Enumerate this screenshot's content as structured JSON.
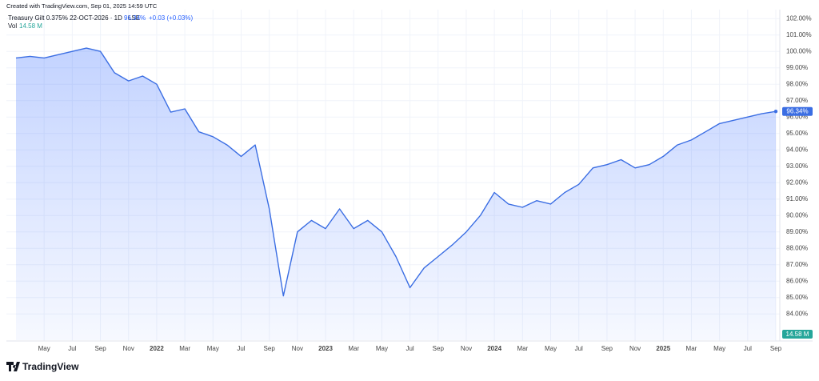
{
  "header": {
    "credit": "Created with TradingView.com, Sep 01, 2025 14:59 UTC",
    "symbol": "Treasury Gilt 0.375% 22-OCT-2026 · 1D · LSE",
    "price": "96.34%",
    "change": "+0.03 (+0.03%)",
    "vol_label": "Vol",
    "vol_value": "14.58 M"
  },
  "logo": "TradingView",
  "chart_data": {
    "type": "area",
    "x": [
      "2021-03",
      "2021-04",
      "2021-05",
      "2021-06",
      "2021-07",
      "2021-08",
      "2021-09",
      "2021-10",
      "2021-11",
      "2021-12",
      "2022-01",
      "2022-02",
      "2022-03",
      "2022-04",
      "2022-05",
      "2022-06",
      "2022-07",
      "2022-08",
      "2022-09",
      "2022-10",
      "2022-11",
      "2022-12",
      "2023-01",
      "2023-02",
      "2023-03",
      "2023-04",
      "2023-05",
      "2023-06",
      "2023-07",
      "2023-08",
      "2023-09",
      "2023-10",
      "2023-11",
      "2023-12",
      "2024-01",
      "2024-02",
      "2024-03",
      "2024-04",
      "2024-05",
      "2024-06",
      "2024-07",
      "2024-08",
      "2024-09",
      "2024-10",
      "2024-11",
      "2024-12",
      "2025-01",
      "2025-02",
      "2025-03",
      "2025-04",
      "2025-05",
      "2025-06",
      "2025-07",
      "2025-08",
      "2025-09"
    ],
    "series": [
      {
        "name": "Treasury Gilt 0.375% 22-OCT-2026",
        "color": "#3b6ee3",
        "values": [
          99.6,
          99.7,
          99.6,
          99.8,
          100.0,
          100.2,
          100.0,
          98.7,
          98.2,
          98.5,
          98.0,
          96.3,
          96.5,
          95.1,
          94.8,
          94.3,
          93.6,
          94.3,
          90.4,
          85.1,
          89.0,
          89.7,
          89.2,
          90.4,
          89.2,
          89.7,
          89.0,
          87.5,
          85.6,
          86.8,
          87.5,
          88.2,
          89.0,
          90.0,
          91.4,
          90.7,
          90.5,
          90.9,
          90.7,
          91.4,
          91.9,
          92.9,
          93.1,
          93.4,
          92.9,
          93.1,
          93.6,
          94.3,
          94.6,
          95.1,
          95.6,
          95.8,
          96.0,
          96.2,
          96.34
        ]
      }
    ],
    "last_price_label": "96.34%",
    "xlim": [
      "2021-03",
      "2025-09"
    ],
    "xticks": [
      {
        "value": "2021-05",
        "label": "May"
      },
      {
        "value": "2021-07",
        "label": "Jul"
      },
      {
        "value": "2021-09",
        "label": "Sep"
      },
      {
        "value": "2021-11",
        "label": "Nov"
      },
      {
        "value": "2022-01",
        "label": "2022"
      },
      {
        "value": "2022-03",
        "label": "Mar"
      },
      {
        "value": "2022-05",
        "label": "May"
      },
      {
        "value": "2022-07",
        "label": "Jul"
      },
      {
        "value": "2022-09",
        "label": "Sep"
      },
      {
        "value": "2022-11",
        "label": "Nov"
      },
      {
        "value": "2023-01",
        "label": "2023"
      },
      {
        "value": "2023-03",
        "label": "Mar"
      },
      {
        "value": "2023-05",
        "label": "May"
      },
      {
        "value": "2023-07",
        "label": "Jul"
      },
      {
        "value": "2023-09",
        "label": "Sep"
      },
      {
        "value": "2023-11",
        "label": "Nov"
      },
      {
        "value": "2024-01",
        "label": "2024"
      },
      {
        "value": "2024-03",
        "label": "Mar"
      },
      {
        "value": "2024-05",
        "label": "May"
      },
      {
        "value": "2024-07",
        "label": "Jul"
      },
      {
        "value": "2024-09",
        "label": "Sep"
      },
      {
        "value": "2024-11",
        "label": "Nov"
      },
      {
        "value": "2025-01",
        "label": "2025"
      },
      {
        "value": "2025-03",
        "label": "Mar"
      },
      {
        "value": "2025-05",
        "label": "May"
      },
      {
        "value": "2025-07",
        "label": "Jul"
      },
      {
        "value": "2025-09",
        "label": "Sep"
      }
    ],
    "ylim": [
      82.4,
      102.4
    ],
    "yticks": [
      {
        "value": 84,
        "label": "84.00%"
      },
      {
        "value": 85,
        "label": "85.00%"
      },
      {
        "value": 86,
        "label": "86.00%"
      },
      {
        "value": 87,
        "label": "87.00%"
      },
      {
        "value": 88,
        "label": "88.00%"
      },
      {
        "value": 89,
        "label": "89.00%"
      },
      {
        "value": 90,
        "label": "90.00%"
      },
      {
        "value": 91,
        "label": "91.00%"
      },
      {
        "value": 92,
        "label": "92.00%"
      },
      {
        "value": 93,
        "label": "93.00%"
      },
      {
        "value": 94,
        "label": "94.00%"
      },
      {
        "value": 95,
        "label": "95.00%"
      },
      {
        "value": 96,
        "label": "96.00%"
      },
      {
        "value": 97,
        "label": "97.00%"
      },
      {
        "value": 98,
        "label": "98.00%"
      },
      {
        "value": 99,
        "label": "99.00%"
      },
      {
        "value": 100,
        "label": "100.00%"
      },
      {
        "value": 101,
        "label": "101.00%"
      },
      {
        "value": 102,
        "label": "102.00%"
      }
    ],
    "grid": true
  }
}
